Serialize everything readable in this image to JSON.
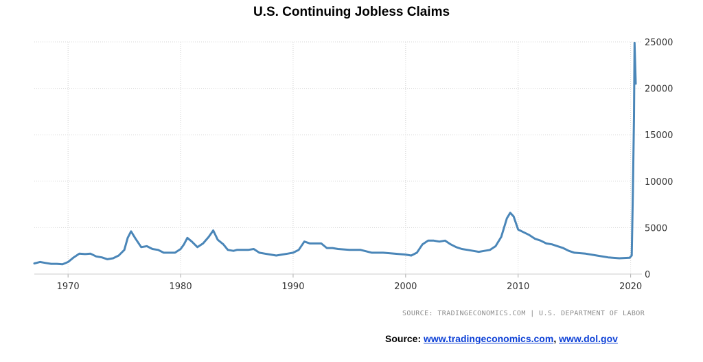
{
  "chart_data": {
    "type": "line",
    "title": "U.S. Continuing Jobless Claims",
    "xlabel": "",
    "ylabel": "",
    "xlim": [
      1967.0,
      2021.0
    ],
    "ylim": [
      0,
      25000
    ],
    "x_ticks": [
      "1970",
      "1980",
      "1990",
      "2000",
      "2010",
      "2020"
    ],
    "y_ticks": [
      "0",
      "5000",
      "10000",
      "15000",
      "20000",
      "25000"
    ],
    "y_axis_position": "right",
    "grid": true,
    "line_color": "#4a86b8",
    "series": [
      {
        "x": [
          1967.0,
          1967.5,
          1968.0,
          1968.5,
          1969.0,
          1969.5,
          1970.0,
          1970.5,
          1971.0,
          1971.5,
          1972.0,
          1972.5,
          1973.0,
          1973.5,
          1974.0,
          1974.5,
          1975.0,
          1975.3,
          1975.6,
          1976.0,
          1976.5,
          1977.0,
          1977.5,
          1978.0,
          1978.5,
          1979.0,
          1979.5,
          1980.0,
          1980.3,
          1980.6,
          1981.0,
          1981.5,
          1982.0,
          1982.5,
          1982.9,
          1983.3,
          1983.8,
          1984.2,
          1984.7,
          1985.0,
          1985.5,
          1986.0,
          1986.5,
          1987.0,
          1987.5,
          1988.0,
          1988.5,
          1989.0,
          1989.5,
          1990.0,
          1990.5,
          1991.0,
          1991.5,
          1992.0,
          1992.5,
          1993.0,
          1993.5,
          1994.0,
          1995.0,
          1996.0,
          1997.0,
          1998.0,
          1999.0,
          2000.0,
          2000.5,
          2001.0,
          2001.5,
          2002.0,
          2002.5,
          2003.0,
          2003.5,
          2004.0,
          2004.5,
          2005.0,
          2005.5,
          2006.0,
          2006.5,
          2007.0,
          2007.5,
          2008.0,
          2008.5,
          2009.0,
          2009.3,
          2009.6,
          2010.0,
          2010.5,
          2011.0,
          2011.5,
          2012.0,
          2012.5,
          2013.0,
          2013.5,
          2014.0,
          2014.5,
          2015.0,
          2016.0,
          2017.0,
          2018.0,
          2019.0,
          2019.9,
          2020.1,
          2020.2,
          2020.3,
          2020.35,
          2020.45
        ],
        "y": [
          1150,
          1300,
          1200,
          1100,
          1100,
          1050,
          1300,
          1800,
          2200,
          2150,
          2200,
          1900,
          1800,
          1600,
          1700,
          2000,
          2600,
          3900,
          4600,
          3800,
          2900,
          3000,
          2700,
          2600,
          2300,
          2300,
          2300,
          2700,
          3200,
          3900,
          3500,
          2900,
          3300,
          4000,
          4700,
          3700,
          3200,
          2600,
          2500,
          2600,
          2600,
          2600,
          2700,
          2300,
          2200,
          2100,
          2000,
          2100,
          2200,
          2300,
          2600,
          3500,
          3300,
          3300,
          3300,
          2800,
          2800,
          2700,
          2600,
          2600,
          2300,
          2300,
          2200,
          2100,
          2000,
          2300,
          3200,
          3600,
          3600,
          3500,
          3600,
          3200,
          2900,
          2700,
          2600,
          2500,
          2400,
          2500,
          2600,
          3000,
          4000,
          6000,
          6600,
          6200,
          4800,
          4500,
          4200,
          3800,
          3600,
          3300,
          3200,
          3000,
          2800,
          2500,
          2300,
          2200,
          2000,
          1800,
          1700,
          1750,
          2000,
          9000,
          17000,
          24900,
          20500
        ]
      }
    ]
  },
  "source_note": "SOURCE: TRADINGECONOMICS.COM | U.S. DEPARTMENT OF LABOR",
  "source_line": {
    "label": "Source:",
    "link1": "www.tradingeconomics.com",
    "separator": ",",
    "link2": "www.dol.gov"
  }
}
